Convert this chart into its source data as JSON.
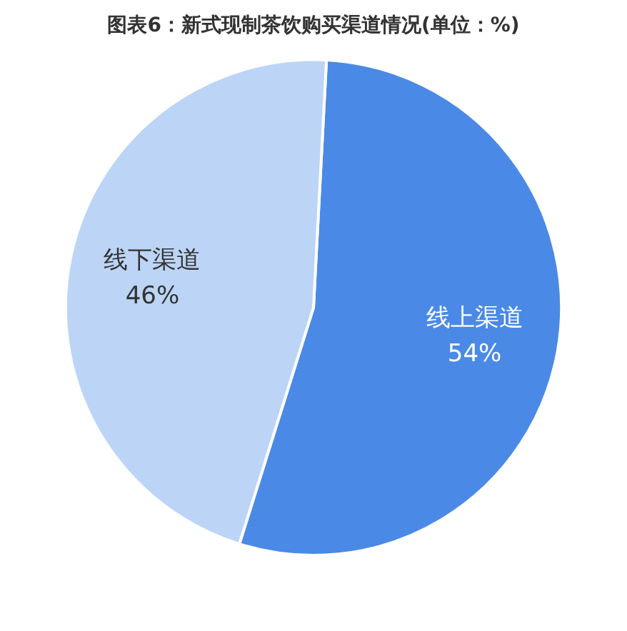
{
  "chart_data": {
    "type": "pie",
    "title": "图表6：新式现制茶饮购买渠道情况(单位：%)",
    "categories": [
      "线上渠道",
      "线下渠道"
    ],
    "values": [
      54,
      46
    ],
    "colors": [
      "#4a8ae6",
      "#bcd5f6"
    ],
    "value_labels": [
      "54%",
      "46%"
    ],
    "legend": false
  }
}
